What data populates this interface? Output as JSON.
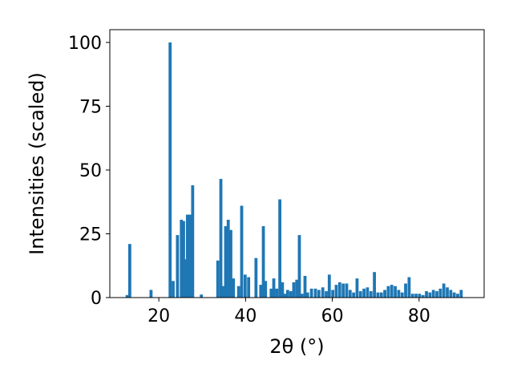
{
  "chart_data": {
    "type": "bar",
    "xlabel": "2θ (°)",
    "ylabel": "Intensities (scaled)",
    "xlim": [
      8.7,
      95
    ],
    "ylim": [
      0,
      105
    ],
    "xticks": [
      20,
      40,
      60,
      80
    ],
    "xtick_labels": [
      "20",
      "40",
      "60",
      "80"
    ],
    "yticks": [
      0,
      25,
      50,
      75,
      100
    ],
    "ytick_labels": [
      "0",
      "25",
      "50",
      "75",
      "100"
    ],
    "grid": false,
    "bar_width": 0.7,
    "bar_color": "#1f77b4",
    "series": [
      {
        "x": [
          12.7,
          13.3,
          18.2,
          22.6,
          23.3,
          24.3,
          25.2,
          25.7,
          26.1,
          26.6,
          27.2,
          27.8,
          29.8,
          33.6,
          34.3,
          34.9,
          35.4,
          36.0,
          36.6,
          37.2,
          38.4,
          39.1,
          39.9,
          40.7,
          42.4,
          43.5,
          44.1,
          44.6,
          45.9,
          46.5,
          47.2,
          47.9,
          48.5,
          49.1,
          49.7,
          50.4,
          51.1,
          51.8,
          52.4,
          53.0,
          53.7,
          54.3,
          55.2,
          56.1,
          56.9,
          57.8,
          58.6,
          59.3,
          60.1,
          60.9,
          61.7,
          62.5,
          63.3,
          64.1,
          64.9,
          65.7,
          66.5,
          67.3,
          68.1,
          68.9,
          69.7,
          70.5,
          71.3,
          72.1,
          72.9,
          73.7,
          74.5,
          75.3,
          76.1,
          76.9,
          77.7,
          78.5,
          79.3,
          80.1,
          80.9,
          81.7,
          82.5,
          83.3,
          84.1,
          84.9,
          85.7,
          86.5,
          87.3,
          88.1,
          88.9,
          89.7
        ],
        "values": [
          1,
          21,
          3,
          100,
          6.5,
          24.5,
          30.5,
          30,
          15,
          32.5,
          32.5,
          44,
          1.2,
          14.5,
          46.5,
          4.5,
          28,
          30.5,
          26.5,
          7.5,
          4.5,
          36,
          9,
          8,
          15.5,
          5,
          28,
          6.5,
          3.5,
          7.5,
          3.5,
          38.5,
          6,
          1.5,
          3,
          2.5,
          6,
          7,
          24.5,
          1.5,
          8.5,
          2,
          3.5,
          3.5,
          3,
          4,
          2.5,
          9,
          3,
          5,
          6,
          5.5,
          5.5,
          3,
          2,
          7.5,
          2.5,
          3.5,
          4,
          2.5,
          10,
          2,
          2,
          3,
          4.5,
          5,
          4.5,
          3,
          2,
          5.5,
          8,
          1.5,
          1.5,
          1.5,
          1,
          2.5,
          2,
          3,
          2.5,
          3.5,
          5.5,
          4,
          3,
          2,
          1.5,
          3
        ]
      }
    ]
  }
}
